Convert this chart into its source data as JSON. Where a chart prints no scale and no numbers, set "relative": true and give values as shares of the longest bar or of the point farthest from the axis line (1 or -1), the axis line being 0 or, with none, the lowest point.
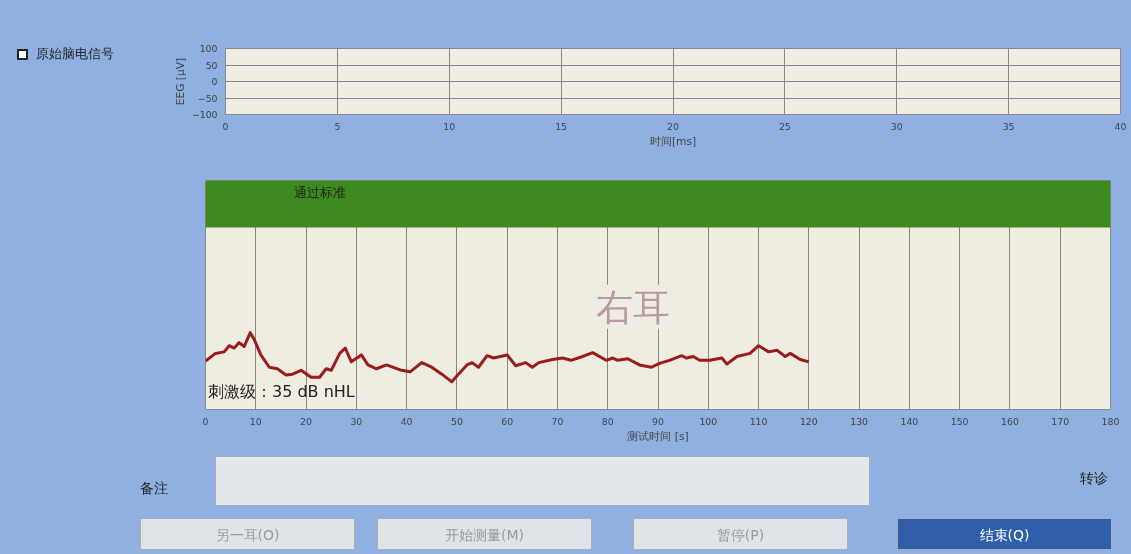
{
  "chart_data": [
    {
      "type": "line",
      "xlabel": "时间[ms]",
      "ylabel": "EEG [µV]",
      "xlim": [
        0,
        40
      ],
      "xticks": [
        0,
        5,
        10,
        15,
        20,
        25,
        30,
        35,
        40
      ],
      "ylim": [
        -100,
        100
      ],
      "yticks": [
        -100,
        -50,
        0,
        50,
        100
      ],
      "grid": true,
      "annotations": [
        "原始脑电信号"
      ]
    },
    {
      "type": "line",
      "relative": true,
      "xlabel": "测试时间 [s]",
      "xlim": [
        0,
        180
      ],
      "xticks": [
        0,
        10,
        20,
        30,
        40,
        50,
        60,
        70,
        80,
        90,
        100,
        110,
        120,
        130,
        140,
        150,
        160,
        170,
        180
      ],
      "grid": "x",
      "x": [
        0,
        2,
        3.7,
        4.7,
        5.7,
        6.7,
        7.7,
        8.9,
        9.7,
        11,
        12.7,
        14.3,
        16,
        17.3,
        19,
        21,
        22.7,
        24,
        25,
        26.7,
        27.8,
        29,
        31,
        32.3,
        34,
        36,
        39,
        40.7,
        43,
        45,
        47,
        49,
        50.3,
        52,
        53,
        54.3,
        56,
        57.3,
        60,
        61.7,
        63.7,
        65,
        66.3,
        69,
        71,
        72.7,
        75,
        77,
        79.7,
        81,
        82,
        84,
        86.3,
        88.7,
        90.3,
        92.3,
        94.7,
        95.7,
        97,
        98.3,
        100.3,
        102.7,
        103.7,
        105.7,
        108.3,
        110,
        112,
        113.7,
        115.3,
        116.3,
        118.3,
        120
      ],
      "series": [
        {
          "color": "#9b1c1c",
          "values": [
            0.63,
            0.73,
            0.75,
            0.83,
            0.8,
            0.87,
            0.82,
            1,
            0.91,
            0.71,
            0.55,
            0.53,
            0.45,
            0.46,
            0.51,
            0.42,
            0.42,
            0.53,
            0.51,
            0.73,
            0.8,
            0.62,
            0.71,
            0.58,
            0.53,
            0.58,
            0.51,
            0.49,
            0.61,
            0.55,
            0.46,
            0.36,
            0.46,
            0.58,
            0.61,
            0.55,
            0.7,
            0.67,
            0.71,
            0.57,
            0.61,
            0.55,
            0.61,
            0.65,
            0.67,
            0.64,
            0.69,
            0.74,
            0.64,
            0.67,
            0.64,
            0.66,
            0.58,
            0.55,
            0.6,
            0.64,
            0.7,
            0.67,
            0.69,
            0.64,
            0.64,
            0.67,
            0.59,
            0.69,
            0.73,
            0.83,
            0.75,
            0.77,
            0.69,
            0.73,
            0.65,
            0.62
          ]
        }
      ],
      "bands": [
        {
          "axis": "y",
          "from": 2.37,
          "to": 2.98,
          "label": "通过标准",
          "color": "#3d8a1f"
        }
      ],
      "annotations": [
        "右耳",
        "刺激级：35 dB nHL"
      ]
    },
    {
      "type": "other",
      "annotations": [
        "备注",
        "转诊",
        "另一耳(O)",
        "开始测量(M)",
        "暂停(P)",
        "结束(Q)"
      ]
    }
  ]
}
